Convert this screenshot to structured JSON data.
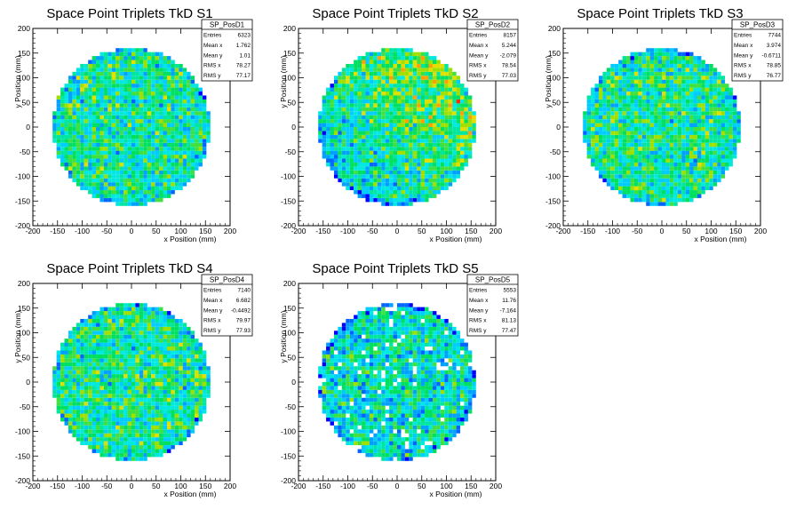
{
  "chart_data": [
    {
      "type": "heatmap",
      "title": "Space Point Triplets TkD S1",
      "xlabel": "x Position (mm)",
      "ylabel": "y Position (mm)",
      "xlim": [
        -200,
        200
      ],
      "ylim": [
        -200,
        200
      ],
      "xticks": [
        -200,
        -150,
        -100,
        -50,
        0,
        50,
        100,
        150,
        200
      ],
      "yticks": [
        -200,
        -150,
        -100,
        -50,
        0,
        50,
        100,
        150,
        200
      ],
      "extent_radius": 160,
      "density_profile": "uniform",
      "stats": {
        "name": "SP_PosD1",
        "rows": [
          {
            "label": "Entries",
            "value": "6323"
          },
          {
            "label": "Mean x",
            "value": "1.762"
          },
          {
            "label": "Mean y",
            "value": "1.01"
          },
          {
            "label": "RMS x",
            "value": "78.27"
          },
          {
            "label": "RMS y",
            "value": "77.17"
          }
        ]
      }
    },
    {
      "type": "heatmap",
      "title": "Space Point Triplets TkD S2",
      "xlabel": "x Position (mm)",
      "ylabel": "y Position (mm)",
      "xlim": [
        -200,
        200
      ],
      "ylim": [
        -200,
        200
      ],
      "xticks": [
        -200,
        -150,
        -100,
        -50,
        0,
        50,
        100,
        150,
        200
      ],
      "yticks": [
        -200,
        -150,
        -100,
        -50,
        0,
        50,
        100,
        150,
        200
      ],
      "extent_radius": 160,
      "density_profile": "higher toward lower right",
      "stats": {
        "name": "SP_PosD2",
        "rows": [
          {
            "label": "Entries",
            "value": "8157"
          },
          {
            "label": "Mean x",
            "value": "5.244"
          },
          {
            "label": "Mean y",
            "value": "-2.079"
          },
          {
            "label": "RMS x",
            "value": "78.54"
          },
          {
            "label": "RMS y",
            "value": "77.03"
          }
        ]
      }
    },
    {
      "type": "heatmap",
      "title": "Space Point Triplets TkD S3",
      "xlabel": "x Position (mm)",
      "ylabel": "y Position (mm)",
      "xlim": [
        -200,
        200
      ],
      "ylim": [
        -200,
        200
      ],
      "xticks": [
        -200,
        -150,
        -100,
        -50,
        0,
        50,
        100,
        150,
        200
      ],
      "yticks": [
        -200,
        -150,
        -100,
        -50,
        0,
        50,
        100,
        150,
        200
      ],
      "extent_radius": 160,
      "density_profile": "uniform",
      "stats": {
        "name": "SP_PosD3",
        "rows": [
          {
            "label": "Entries",
            "value": "7744"
          },
          {
            "label": "Mean x",
            "value": "3.974"
          },
          {
            "label": "Mean y",
            "value": "-0.6711"
          },
          {
            "label": "RMS x",
            "value": "78.85"
          },
          {
            "label": "RMS y",
            "value": "76.77"
          }
        ]
      }
    },
    {
      "type": "heatmap",
      "title": "Space Point Triplets TkD S4",
      "xlabel": "x Position (mm)",
      "ylabel": "y Position (mm)",
      "xlim": [
        -200,
        200
      ],
      "ylim": [
        -200,
        200
      ],
      "xticks": [
        -200,
        -150,
        -100,
        -50,
        0,
        50,
        100,
        150,
        200
      ],
      "yticks": [
        -200,
        -150,
        -100,
        -50,
        0,
        50,
        100,
        150,
        200
      ],
      "extent_radius": 160,
      "density_profile": "uniform",
      "stats": {
        "name": "SP_PosD4",
        "rows": [
          {
            "label": "Entries",
            "value": "7140"
          },
          {
            "label": "Mean x",
            "value": "6.682"
          },
          {
            "label": "Mean y",
            "value": "-0.4492"
          },
          {
            "label": "RMS x",
            "value": "79.97"
          },
          {
            "label": "RMS y",
            "value": "77.93"
          }
        ]
      }
    },
    {
      "type": "heatmap",
      "title": "Space Point Triplets TkD S5",
      "xlabel": "x Position (mm)",
      "ylabel": "y Position (mm)",
      "xlim": [
        -200,
        200
      ],
      "ylim": [
        -200,
        200
      ],
      "xticks": [
        -200,
        -150,
        -100,
        -50,
        0,
        50,
        100,
        150,
        200
      ],
      "yticks": [
        -200,
        -150,
        -100,
        -50,
        0,
        50,
        100,
        150,
        200
      ],
      "extent_radius": 160,
      "density_profile": "sparse with gaps",
      "stats": {
        "name": "SP_PosD5",
        "rows": [
          {
            "label": "Entries",
            "value": "5553"
          },
          {
            "label": "Mean x",
            "value": "11.76"
          },
          {
            "label": "Mean y",
            "value": "-7.164"
          },
          {
            "label": "RMS x",
            "value": "81.13"
          },
          {
            "label": "RMS y",
            "value": "77.47"
          }
        ]
      }
    }
  ],
  "colors": {
    "palette": [
      "#0000ff",
      "#0066ff",
      "#00a0ff",
      "#00ccff",
      "#00e8e0",
      "#00e6a0",
      "#00e060",
      "#40e040",
      "#a0e000",
      "#e0e000",
      "#ffa000",
      "#ff3000"
    ]
  }
}
